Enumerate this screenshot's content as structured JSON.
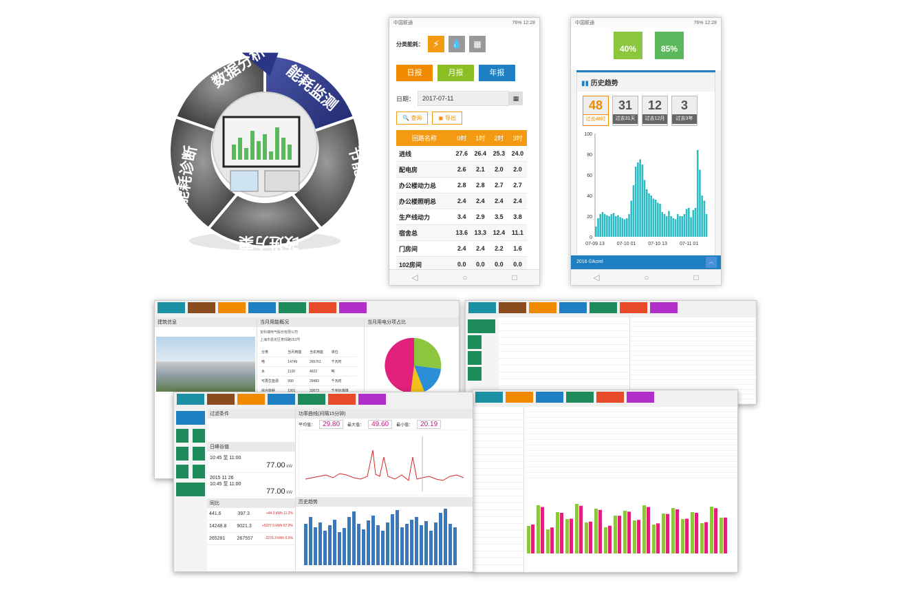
{
  "cycle": {
    "segments": [
      "数据分析",
      "能耗监测",
      "节能实施",
      "改进方案",
      "能耗诊断"
    ]
  },
  "phone1": {
    "status_left": "中国联通",
    "status_right": "76% 12:28",
    "category_label": "分类能耗：",
    "report_tabs": [
      "日报",
      "月报",
      "年报"
    ],
    "report_colors": [
      "#f08a00",
      "#8cbf26",
      "#1f7fc3"
    ],
    "date_label": "日期：",
    "date_value": "2017-07-11",
    "query_button": "查询",
    "export_button": "导出",
    "table_headers": [
      "回路名称",
      "0时",
      "1时",
      "2时",
      "3时"
    ],
    "table_rows": [
      [
        "进线",
        "27.6",
        "26.4",
        "25.3",
        "24.0"
      ],
      [
        "配电房",
        "2.6",
        "2.1",
        "2.0",
        "2.0"
      ],
      [
        "办公楼动力总",
        "2.8",
        "2.8",
        "2.7",
        "2.7"
      ],
      [
        "办公楼照明总",
        "2.4",
        "2.4",
        "2.4",
        "2.4"
      ],
      [
        "生产线动力",
        "3.4",
        "2.9",
        "3.5",
        "3.8"
      ],
      [
        "宿舍总",
        "13.6",
        "13.3",
        "12.4",
        "11.1"
      ],
      [
        "门房间",
        "2.4",
        "2.4",
        "2.2",
        "1.6"
      ],
      [
        "102房间",
        "0.0",
        "0.0",
        "0.0",
        "0.0"
      ]
    ]
  },
  "phone2": {
    "status_left": "中国联通",
    "status_right": "76% 12:28",
    "badge1": "40%",
    "badge2": "85%",
    "section_title": "历史趋势",
    "periods": [
      {
        "n": "48",
        "l": "过去48时"
      },
      {
        "n": "31",
        "l": "过去31天"
      },
      {
        "n": "12",
        "l": "过去12月"
      },
      {
        "n": "3",
        "l": "过去3年"
      }
    ],
    "y_ticks": [
      "100",
      "80",
      "60",
      "40",
      "20",
      "0"
    ],
    "x_ticks": [
      "07-09 13",
      "07-10 01",
      "07-10 13",
      "07-11 01"
    ],
    "footer": "2016 ©Acrel"
  },
  "chart_data": {
    "type": "bar",
    "title": "历史趋势",
    "ylim": [
      0,
      100
    ],
    "values": [
      10,
      18,
      22,
      24,
      22,
      21,
      20,
      22,
      23,
      20,
      21,
      19,
      18,
      17,
      18,
      22,
      35,
      50,
      68,
      72,
      75,
      70,
      55,
      46,
      42,
      40,
      37,
      36,
      33,
      32,
      24,
      22,
      20,
      25,
      20,
      18,
      17,
      22,
      20,
      20,
      22,
      27,
      28,
      19,
      26,
      28,
      84,
      65,
      40,
      35,
      22
    ]
  },
  "desk1": {
    "info_title": "建筑信息",
    "overview_title": "当月用能概况",
    "pie_title": "当月用电分项占比",
    "company": "安科瑞电气股份有限公司",
    "address": "上海市嘉定区育绿路253号",
    "rows": [
      [
        "分类",
        "当月用能",
        "当年用能",
        "单位"
      ],
      [
        "电",
        "14749",
        "265761",
        "千瓦时"
      ],
      [
        "水",
        "1120",
        "4622",
        "吨"
      ],
      [
        "可再生能源",
        "990",
        "29483",
        "千瓦时"
      ],
      [
        "综合能耗",
        "1901",
        "33073",
        "千克标准煤"
      ]
    ]
  },
  "desk3": {
    "filter_title": "过滤条件",
    "peak_title": "日峰谷值",
    "trend_title": "功率曲线(间隔15分钟)",
    "p1_label": "平均值：",
    "p1": "29.80",
    "p2_label": "最大值：",
    "p2": "49.60",
    "p3_label": "最小值：",
    "p3": "20.19",
    "peak_time": "10:45 至 11:00",
    "peak_val": "77.00",
    "peak_unit": "kW",
    "date_val": "2015 11 26",
    "low_time": "10:45 至 11:00",
    "low_val": "77.00",
    "compare_title": "同比",
    "hist_title": "历史趋势",
    "cmp_rows": [
      [
        "441.6",
        "397.3",
        "+44.3 kWh"
      ],
      [
        "14248.8",
        "9021.3",
        "+5227.5 kWh"
      ],
      [
        "265281",
        "267557",
        "-2276.3 kWh"
      ]
    ],
    "cmp_pct": [
      "11.2%",
      "57.9%",
      "0.9%"
    ]
  }
}
